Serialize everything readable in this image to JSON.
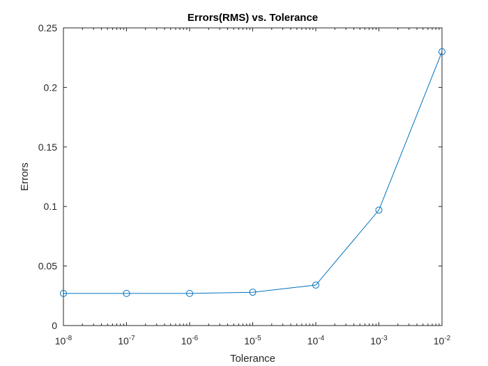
{
  "chart_data": {
    "type": "line",
    "title": "Errors(RMS) vs. Tolerance",
    "xlabel": "Tolerance",
    "ylabel": "Errors",
    "x_scale": "log",
    "xlim": [
      1e-08,
      0.01
    ],
    "ylim": [
      0,
      0.25
    ],
    "x_ticks": [
      {
        "base": "10",
        "exp": "-8"
      },
      {
        "base": "10",
        "exp": "-7"
      },
      {
        "base": "10",
        "exp": "-6"
      },
      {
        "base": "10",
        "exp": "-5"
      },
      {
        "base": "10",
        "exp": "-4"
      },
      {
        "base": "10",
        "exp": "-3"
      },
      {
        "base": "10",
        "exp": "-2"
      }
    ],
    "y_ticks": [
      "0",
      "0.05",
      "0.1",
      "0.15",
      "0.2",
      "0.25"
    ],
    "grid": false,
    "marker": "circle",
    "color": "#0072BD",
    "series": [
      {
        "x": [
          1e-08,
          1e-07,
          1e-06,
          1e-05,
          0.0001,
          0.001,
          0.01
        ],
        "y": [
          0.027,
          0.027,
          0.027,
          0.028,
          0.034,
          0.097,
          0.23
        ]
      }
    ]
  }
}
